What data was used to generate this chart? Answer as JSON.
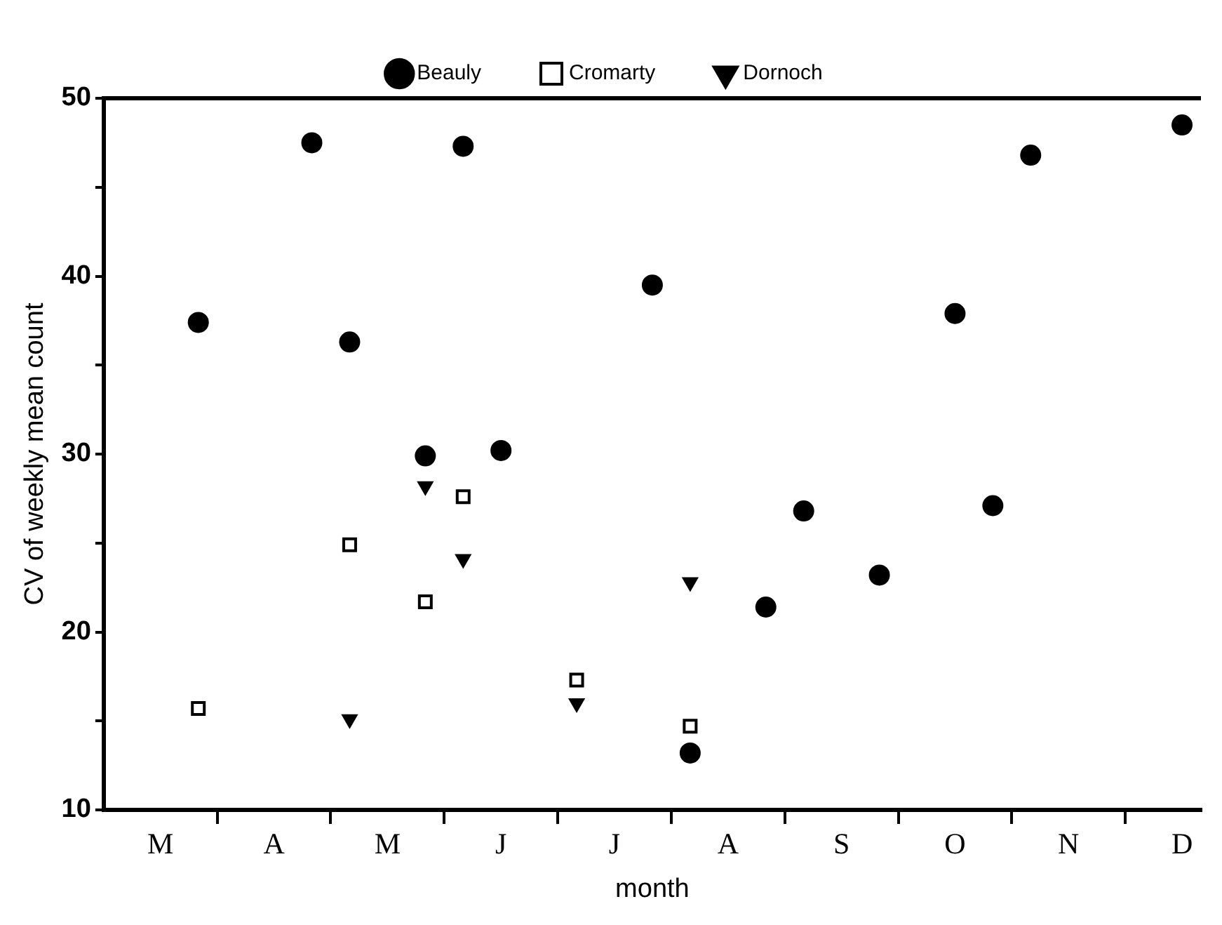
{
  "chart_data": {
    "type": "scatter",
    "xlabel": "month",
    "ylabel": "CV of weekly mean count",
    "legend": "top",
    "grid": false,
    "categories": [
      null,
      "M",
      null,
      null,
      "A",
      null,
      null,
      "M",
      null,
      null,
      "J",
      null,
      null,
      "J",
      null,
      null,
      "A",
      null,
      null,
      "S",
      null,
      null,
      "O",
      null,
      null,
      "N",
      null,
      null,
      "D"
    ],
    "ylim": [
      10,
      50
    ],
    "yticks": [
      10,
      {
        "value": 15,
        "label": null
      },
      20,
      {
        "value": 25,
        "label": null
      },
      30,
      {
        "value": 35,
        "label": null
      },
      40,
      {
        "value": 45,
        "label": null
      },
      50
    ],
    "series": [
      {
        "name": "Beauly",
        "color": "#000000",
        "marker": "circle",
        "values": [
          null,
          null,
          37.4,
          null,
          null,
          47.5,
          36.3,
          null,
          29.9,
          47.3,
          30.2,
          null,
          null,
          null,
          39.5,
          13.2,
          null,
          21.4,
          26.8,
          null,
          23.2,
          null,
          37.9,
          27.1,
          46.8,
          null,
          null,
          null,
          48.5
        ]
      },
      {
        "name": "Cromarty",
        "color": "#000000",
        "marker": "square",
        "values": [
          null,
          null,
          15.7,
          null,
          null,
          null,
          24.9,
          null,
          21.7,
          27.6,
          null,
          null,
          17.3,
          null,
          null,
          14.7,
          null,
          null,
          null,
          null,
          null,
          null,
          null,
          null,
          null,
          null,
          null,
          null,
          null
        ]
      },
      {
        "name": "Dornoch",
        "color": "#000000",
        "marker": "triangle",
        "values": [
          null,
          null,
          null,
          null,
          null,
          null,
          15.1,
          null,
          28.2,
          24.1,
          null,
          null,
          16.0,
          null,
          null,
          22.8,
          null,
          null,
          null,
          null,
          null,
          null,
          null,
          null,
          null,
          null,
          null,
          null,
          null
        ]
      }
    ]
  }
}
